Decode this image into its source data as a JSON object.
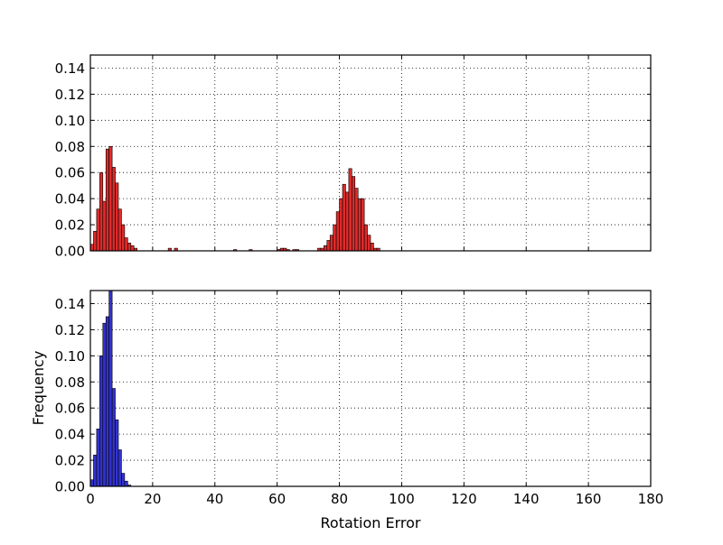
{
  "chart_data": [
    {
      "type": "bar",
      "panel": "top",
      "xlabel": "",
      "ylabel": "",
      "xlim": [
        0,
        180
      ],
      "ylim": [
        0,
        0.15
      ],
      "grid": true,
      "show_x_tick_labels": false,
      "bin_width": 1,
      "color": "#dd2b2b",
      "yticks": [
        "0.00",
        "0.02",
        "0.04",
        "0.06",
        "0.08",
        "0.10",
        "0.12",
        "0.14"
      ],
      "xticks": [
        "0",
        "20",
        "40",
        "60",
        "80",
        "100",
        "120",
        "140",
        "160",
        "180"
      ],
      "bins": [
        {
          "x": 0,
          "y": 0.005
        },
        {
          "x": 1,
          "y": 0.015
        },
        {
          "x": 2,
          "y": 0.032
        },
        {
          "x": 3,
          "y": 0.06
        },
        {
          "x": 4,
          "y": 0.038
        },
        {
          "x": 5,
          "y": 0.078
        },
        {
          "x": 6,
          "y": 0.08
        },
        {
          "x": 7,
          "y": 0.064
        },
        {
          "x": 8,
          "y": 0.052
        },
        {
          "x": 9,
          "y": 0.032
        },
        {
          "x": 10,
          "y": 0.02
        },
        {
          "x": 11,
          "y": 0.01
        },
        {
          "x": 12,
          "y": 0.006
        },
        {
          "x": 13,
          "y": 0.004
        },
        {
          "x": 14,
          "y": 0.002
        },
        {
          "x": 25,
          "y": 0.002
        },
        {
          "x": 27,
          "y": 0.002
        },
        {
          "x": 46,
          "y": 0.001
        },
        {
          "x": 51,
          "y": 0.001
        },
        {
          "x": 60,
          "y": 0.001
        },
        {
          "x": 61,
          "y": 0.002
        },
        {
          "x": 62,
          "y": 0.002
        },
        {
          "x": 63,
          "y": 0.001
        },
        {
          "x": 65,
          "y": 0.001
        },
        {
          "x": 66,
          "y": 0.001
        },
        {
          "x": 73,
          "y": 0.002
        },
        {
          "x": 74,
          "y": 0.002
        },
        {
          "x": 75,
          "y": 0.004
        },
        {
          "x": 76,
          "y": 0.008
        },
        {
          "x": 77,
          "y": 0.012
        },
        {
          "x": 78,
          "y": 0.02
        },
        {
          "x": 79,
          "y": 0.03
        },
        {
          "x": 80,
          "y": 0.04
        },
        {
          "x": 81,
          "y": 0.051
        },
        {
          "x": 82,
          "y": 0.045
        },
        {
          "x": 83,
          "y": 0.063
        },
        {
          "x": 84,
          "y": 0.057
        },
        {
          "x": 85,
          "y": 0.048
        },
        {
          "x": 86,
          "y": 0.04
        },
        {
          "x": 87,
          "y": 0.04
        },
        {
          "x": 88,
          "y": 0.02
        },
        {
          "x": 89,
          "y": 0.012
        },
        {
          "x": 90,
          "y": 0.006
        },
        {
          "x": 91,
          "y": 0.002
        },
        {
          "x": 92,
          "y": 0.002
        }
      ]
    },
    {
      "type": "bar",
      "panel": "bottom",
      "xlabel": "Rotation Error",
      "ylabel": "Frequency",
      "xlim": [
        0,
        180
      ],
      "ylim": [
        0,
        0.15
      ],
      "grid": true,
      "show_x_tick_labels": true,
      "bin_width": 1,
      "color": "#3333cc",
      "yticks": [
        "0.00",
        "0.02",
        "0.04",
        "0.06",
        "0.08",
        "0.10",
        "0.12",
        "0.14"
      ],
      "xticks": [
        "0",
        "20",
        "40",
        "60",
        "80",
        "100",
        "120",
        "140",
        "160",
        "180"
      ],
      "bins": [
        {
          "x": 0,
          "y": 0.005
        },
        {
          "x": 1,
          "y": 0.024
        },
        {
          "x": 2,
          "y": 0.044
        },
        {
          "x": 3,
          "y": 0.1
        },
        {
          "x": 4,
          "y": 0.125
        },
        {
          "x": 5,
          "y": 0.13
        },
        {
          "x": 6,
          "y": 0.16
        },
        {
          "x": 7,
          "y": 0.075
        },
        {
          "x": 8,
          "y": 0.051
        },
        {
          "x": 9,
          "y": 0.028
        },
        {
          "x": 10,
          "y": 0.01
        },
        {
          "x": 11,
          "y": 0.004
        },
        {
          "x": 12,
          "y": 0.001
        }
      ]
    }
  ]
}
